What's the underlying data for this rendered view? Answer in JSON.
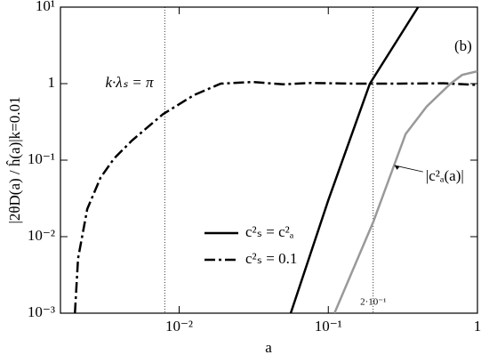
{
  "chart_data": {
    "type": "line",
    "xlabel": "a",
    "ylabel": "|2θD(a) / ĥ(a)|k=0.01",
    "xscale": "log",
    "yscale": "log",
    "xlim": [
      0.0016,
      1
    ],
    "ylim": [
      0.001,
      10
    ],
    "xticks": [
      {
        "value": 0.01,
        "label": "10⁻²"
      },
      {
        "value": 0.1,
        "label": "10⁻¹"
      },
      {
        "value": 0.2,
        "label": "2·10⁻¹"
      },
      1
    ],
    "yticks": [
      {
        "value": 0.001,
        "label": "10⁻³"
      },
      {
        "value": 0.01,
        "label": "10⁻²"
      },
      {
        "value": 0.1,
        "label": "10⁻¹"
      },
      1,
      {
        "value": 10,
        "label": "10¹"
      }
    ],
    "vlines": [
      0.008,
      0.2
    ],
    "legend": "lower-center",
    "series": [
      {
        "name": "c²ₛ = c²ₐ",
        "color": "#000000",
        "style": "solid",
        "x": [
          0.056,
          0.1,
          0.19,
          0.4
        ],
        "values": [
          0.001,
          0.03,
          1,
          10
        ]
      },
      {
        "name": "c²ₛ = 0.1",
        "color": "#000000",
        "style": "dashdot",
        "x": [
          0.002,
          0.0021,
          0.00242,
          0.00297,
          0.00366,
          0.00482,
          0.0078,
          0.0126,
          0.019,
          0.031,
          0.05,
          0.076,
          0.15,
          0.3,
          0.6,
          1
        ],
        "values": [
          0.001,
          0.0052,
          0.023,
          0.059,
          0.105,
          0.18,
          0.4,
          0.71,
          1.0,
          1.05,
          0.98,
          1.02,
          1.0,
          1.0,
          1.01,
          0.96
        ]
      },
      {
        "color": "#999999",
        "style": "solid",
        "x": [
          0.11,
          0.2,
          0.27,
          0.33,
          0.456,
          0.66,
          0.79,
          1
        ],
        "values": [
          0.001,
          0.0155,
          0.076,
          0.22,
          0.5,
          1.0,
          1.3,
          1.45
        ]
      }
    ],
    "annotations": [
      {
        "text": "k·λₛ = π",
        "x": 0.0032,
        "y": 1
      },
      {
        "text": "(b)",
        "x": 0.7,
        "y": 3
      },
      {
        "text": "|c²ₐ(a)|",
        "x": 0.45,
        "y": 0.06,
        "arrow_to": [
          0.27,
          0.09
        ]
      }
    ]
  }
}
